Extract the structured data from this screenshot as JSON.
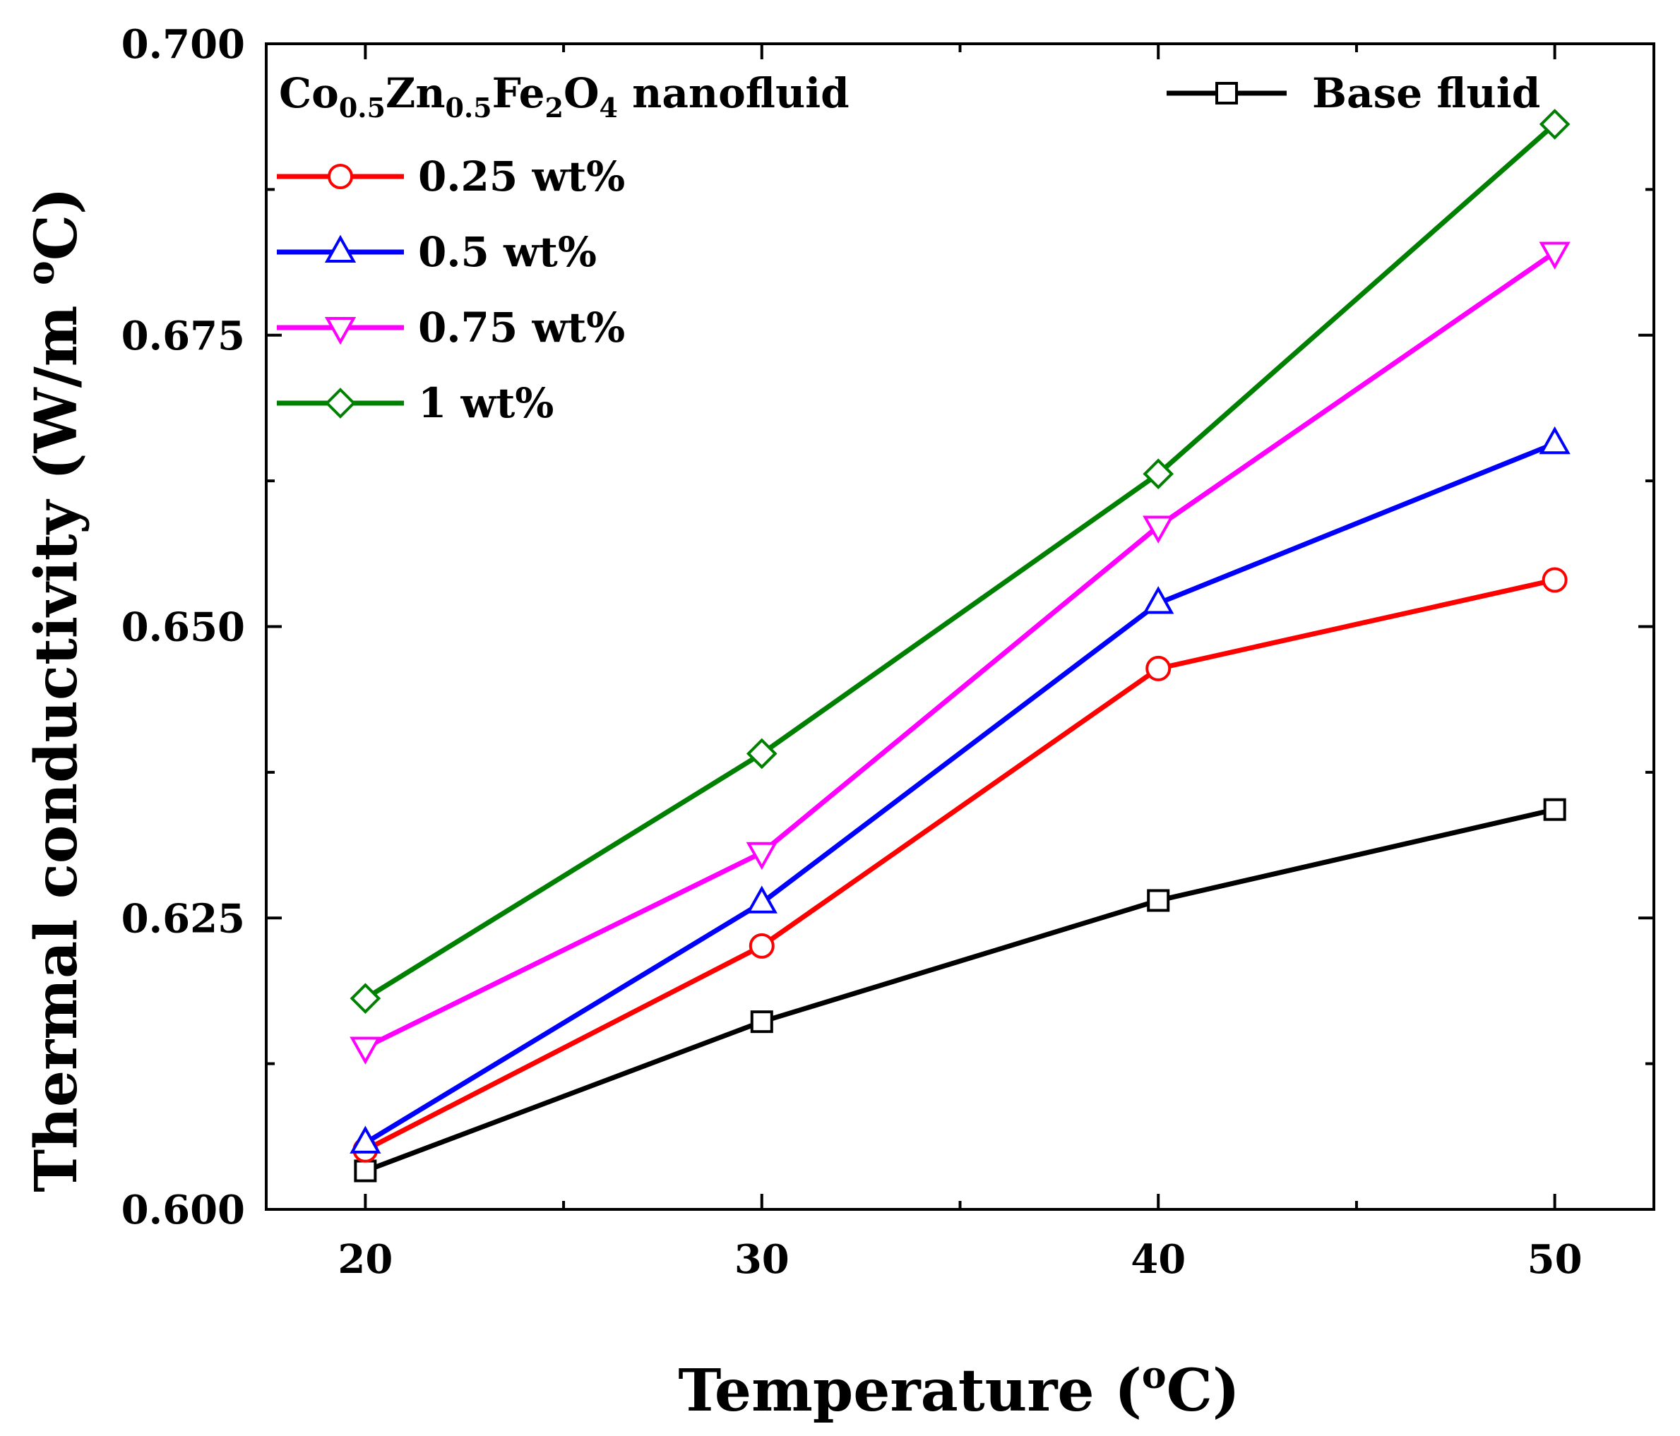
{
  "chart_data": {
    "type": "line",
    "title": "",
    "xlabel": "Temperature (oC)",
    "ylabel": "Thermal conductivity (W/m oC)",
    "xlabel_parts": {
      "pre": "Temperature (",
      "sup": "o",
      "post": "C)"
    },
    "ylabel_parts": {
      "pre": "Thermal conductivity (W/m ",
      "sup": "o",
      "post": "C)"
    },
    "x": [
      20,
      30,
      40,
      50
    ],
    "xlim": [
      17.5,
      52.5
    ],
    "ylim": [
      0.6,
      0.7
    ],
    "xticks": [
      20,
      30,
      40,
      50
    ],
    "xtick_labels": [
      "20",
      "30",
      "40",
      "50"
    ],
    "yticks": [
      0.6,
      0.625,
      0.65,
      0.675,
      0.7
    ],
    "ytick_labels": [
      "0.600",
      "0.625",
      "0.650",
      "0.675",
      "0.700"
    ],
    "grid": false,
    "legend_title": "Co0.5Zn0.5Fe2O4 nanofluid",
    "legend_title_parts": [
      {
        "text": "Co",
        "sub": false
      },
      {
        "text": "0.5",
        "sub": true
      },
      {
        "text": "Zn",
        "sub": false
      },
      {
        "text": "0.5",
        "sub": true
      },
      {
        "text": "Fe",
        "sub": false
      },
      {
        "text": "2",
        "sub": true
      },
      {
        "text": "O",
        "sub": false
      },
      {
        "text": "4",
        "sub": true
      },
      {
        "text": " nanofluid",
        "sub": false
      }
    ],
    "series": [
      {
        "name": "Base fluid",
        "values": [
          0.6033,
          0.6161,
          0.6265,
          0.6343
        ],
        "color": "#000000",
        "marker": "square",
        "legend": "top-right"
      },
      {
        "name": "0.25 wt%",
        "values": [
          0.6051,
          0.6226,
          0.6464,
          0.654
        ],
        "color": "#ff0000",
        "marker": "circle",
        "legend": "top-left"
      },
      {
        "name": "0.5 wt%",
        "values": [
          0.6057,
          0.6263,
          0.652,
          0.6657
        ],
        "color": "#0000ff",
        "marker": "triangle-up",
        "legend": "top-left"
      },
      {
        "name": "0.75 wt%",
        "values": [
          0.6139,
          0.6306,
          0.6586,
          0.6821
        ],
        "color": "#ff00ff",
        "marker": "triangle-down",
        "legend": "top-left"
      },
      {
        "name": "1 wt%",
        "values": [
          0.6181,
          0.6391,
          0.6631,
          0.6931
        ],
        "color": "#008000",
        "marker": "diamond",
        "legend": "top-left"
      }
    ]
  }
}
